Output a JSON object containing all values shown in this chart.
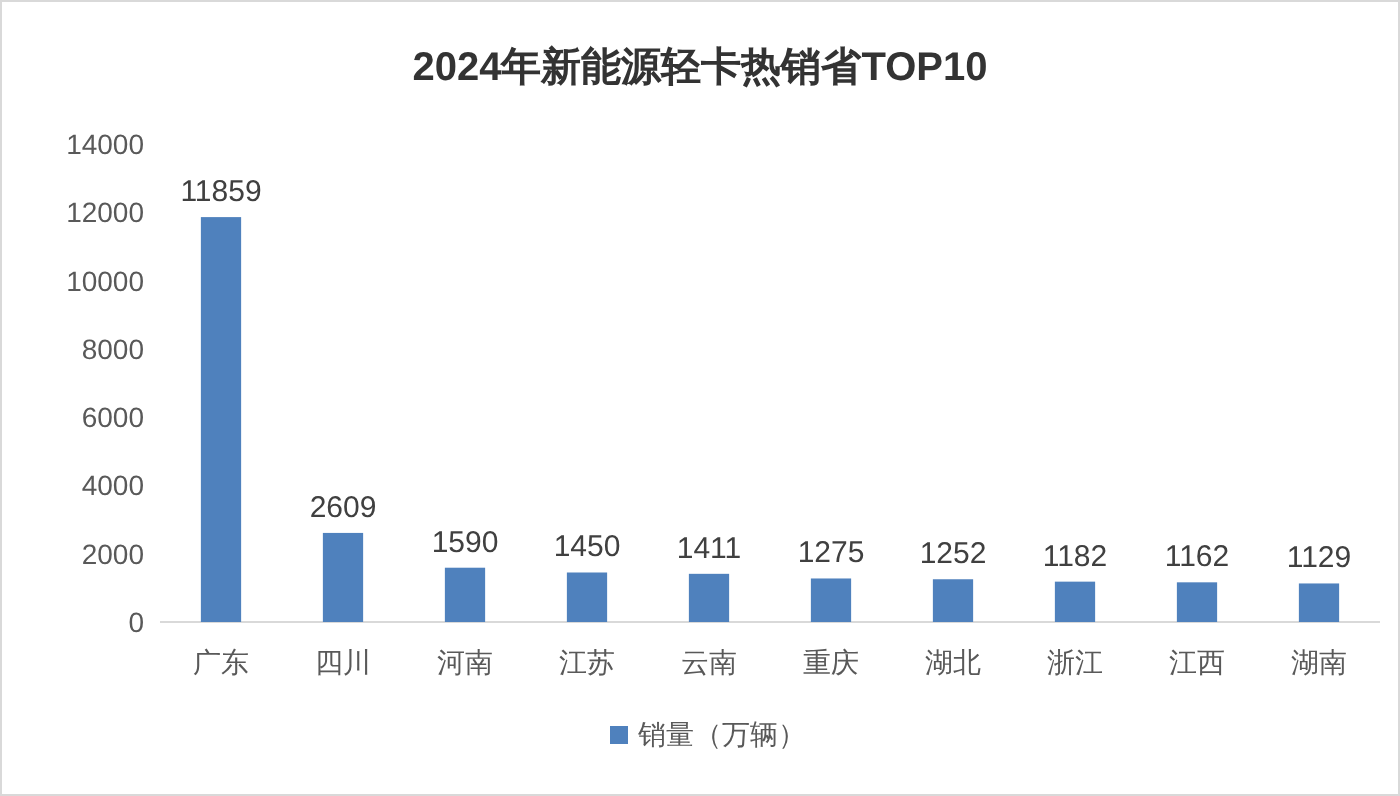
{
  "chart_data": {
    "type": "bar",
    "title": "2024年新能源轻卡热销省TOP10",
    "categories": [
      "广东",
      "四川",
      "河南",
      "江苏",
      "云南",
      "重庆",
      "湖北",
      "浙江",
      "江西",
      "湖南"
    ],
    "series": [
      {
        "name": "销量（万辆）",
        "color": "#4f81bd",
        "values": [
          11859,
          2609,
          1590,
          1450,
          1411,
          1275,
          1252,
          1182,
          1162,
          1129
        ]
      }
    ],
    "ylim": [
      0,
      14000
    ],
    "yticks": [
      0,
      2000,
      4000,
      6000,
      8000,
      10000,
      12000,
      14000
    ],
    "data_labels": true,
    "legend": "bottom"
  }
}
